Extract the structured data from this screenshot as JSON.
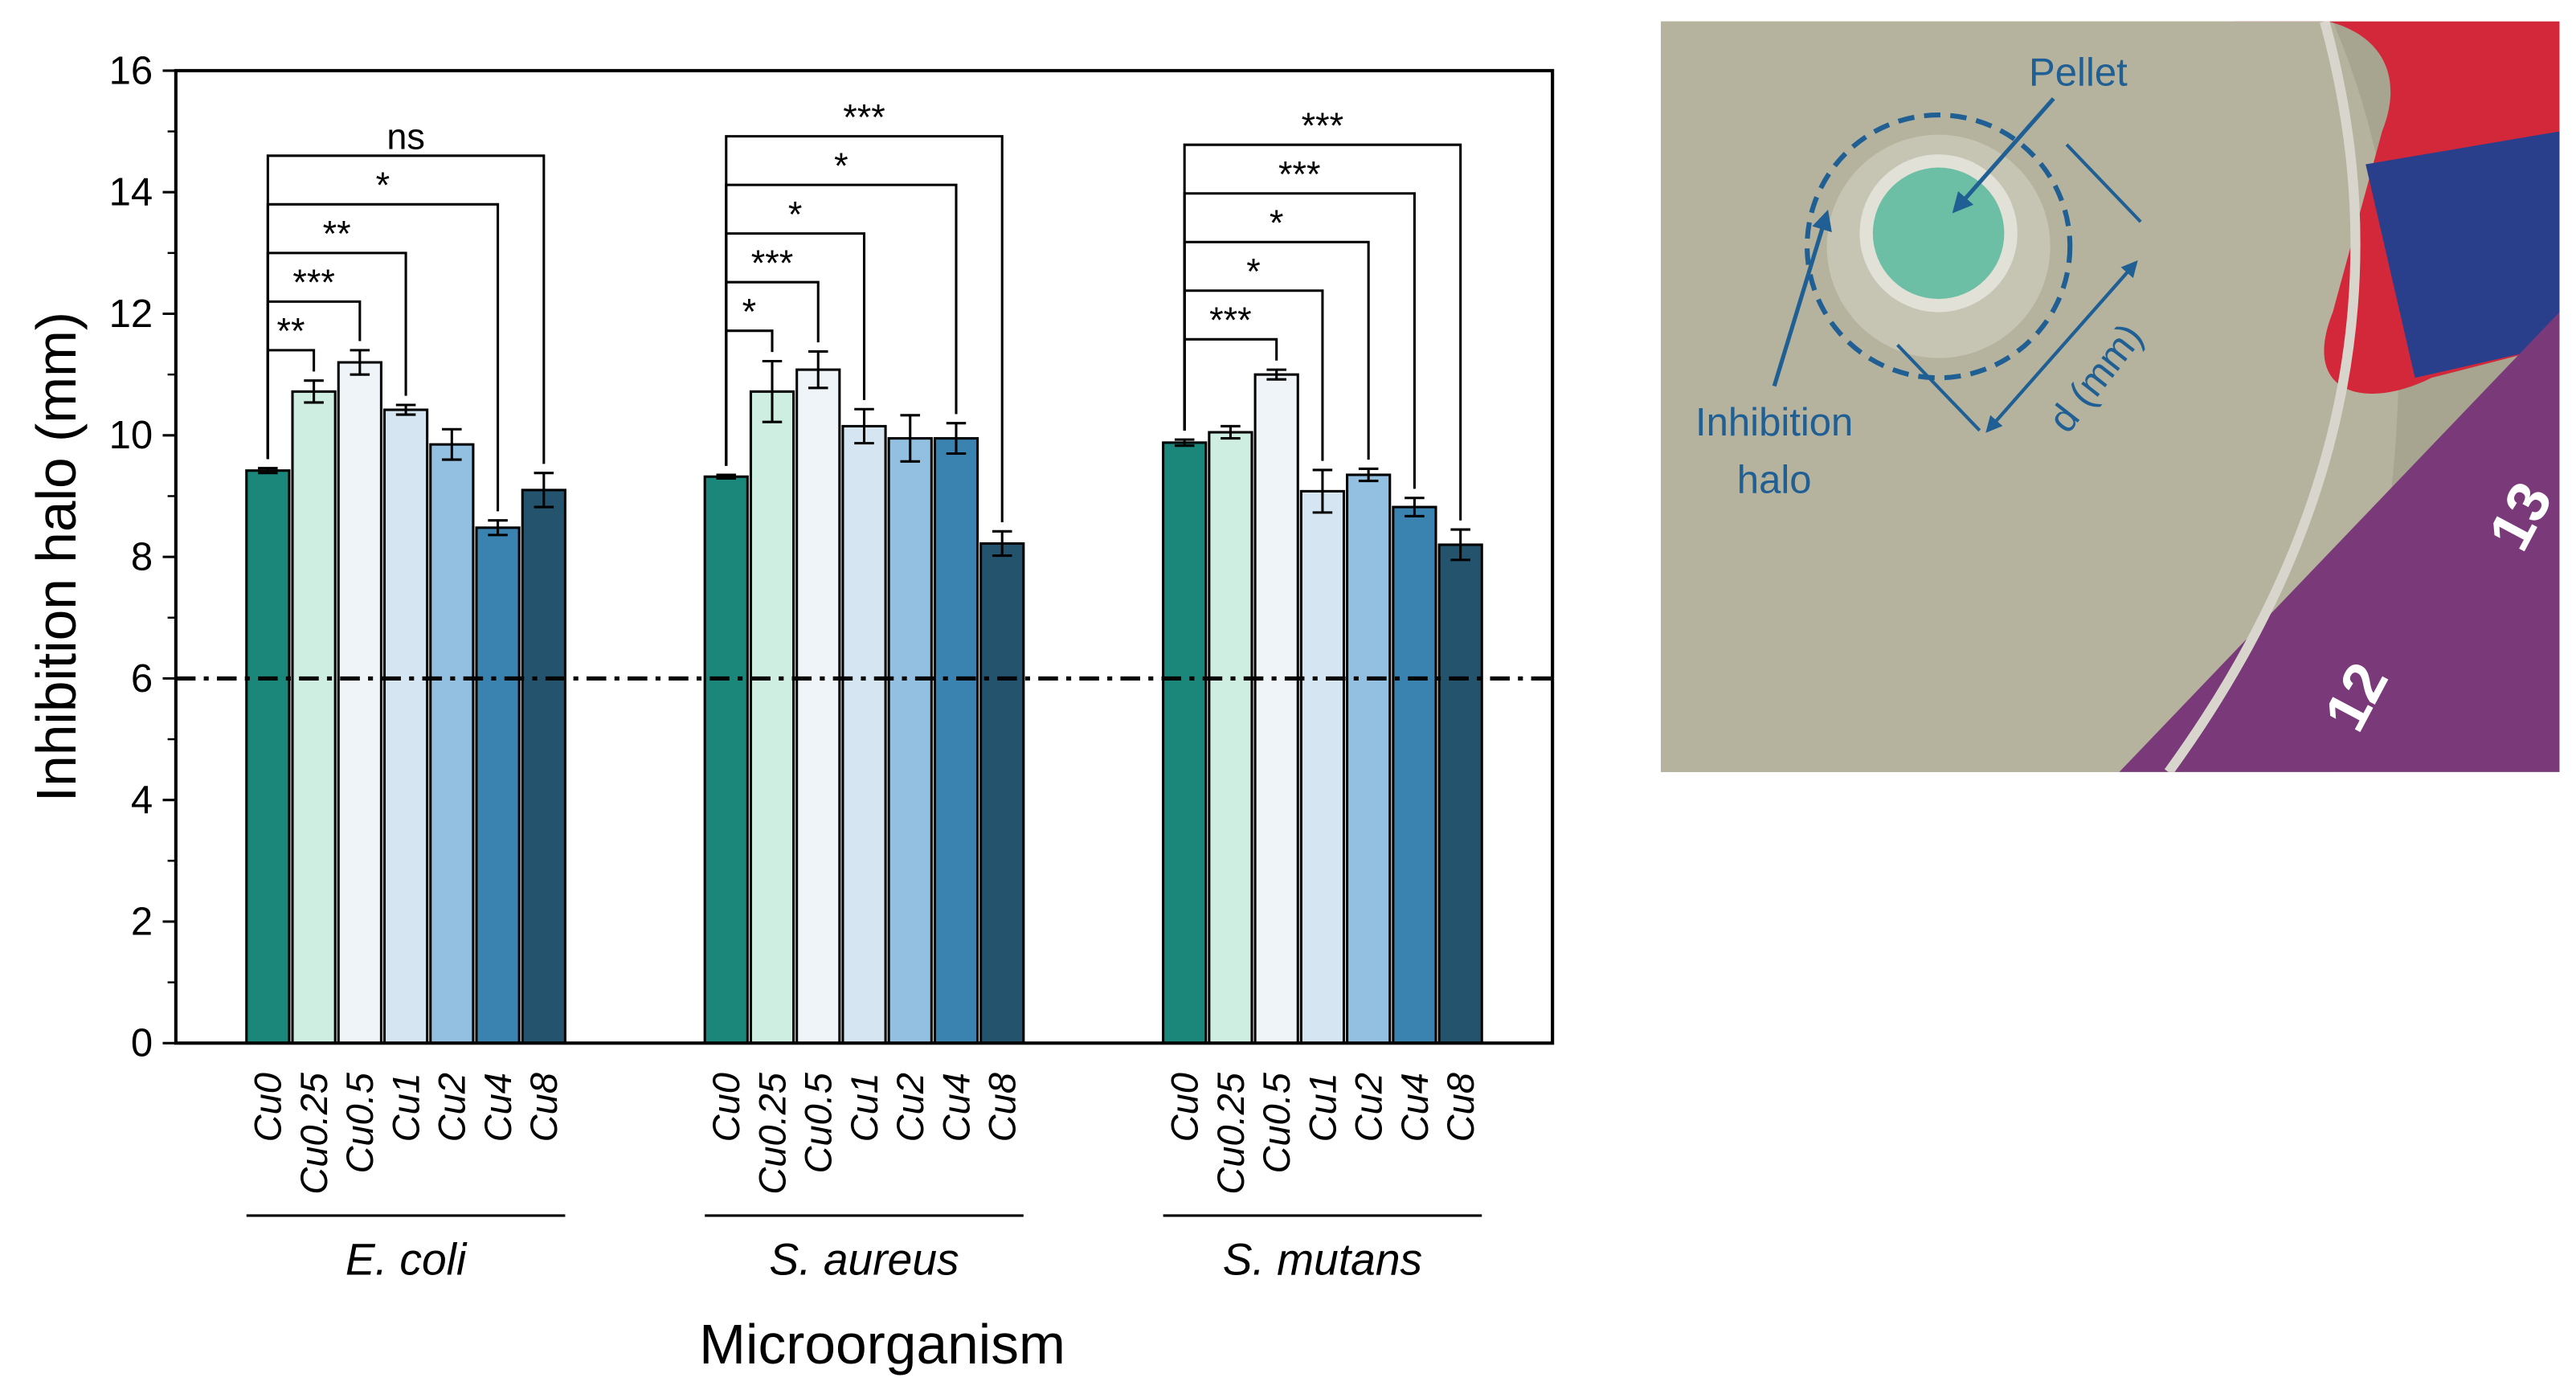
{
  "chart_data": {
    "type": "grouped-bar",
    "y_label": "Inhibition halo (mm)",
    "x_label": "Microorganism",
    "categories": [
      "Cu0",
      "Cu0.25",
      "Cu0.5",
      "Cu1",
      "Cu2",
      "Cu4",
      "Cu8"
    ],
    "colors": [
      "#1b877a",
      "#cdeee0",
      "#eef4f8",
      "#d5e6f2",
      "#93c0e0",
      "#3a82b0",
      "#24536e"
    ],
    "ylim": [
      0,
      16
    ],
    "yticks": [
      0,
      2,
      4,
      6,
      8,
      10,
      12,
      14,
      16
    ],
    "minor_yticks": [
      1,
      3,
      5,
      7,
      9,
      11,
      13,
      15
    ],
    "reference_line": 6,
    "groups": [
      {
        "name": "E. coli",
        "values": [
          9.42,
          10.72,
          11.2,
          10.42,
          9.85,
          8.48,
          9.1
        ],
        "errors": [
          0.04,
          0.18,
          0.2,
          0.08,
          0.25,
          0.12,
          0.28
        ],
        "annotations": [
          {
            "target": 1,
            "label": "**"
          },
          {
            "target": 2,
            "label": "***"
          },
          {
            "target": 3,
            "label": "**"
          },
          {
            "target": 5,
            "label": "*"
          },
          {
            "target": 6,
            "label": "ns"
          }
        ]
      },
      {
        "name": "S. aureus",
        "values": [
          9.32,
          10.72,
          11.08,
          10.15,
          9.95,
          9.95,
          8.22
        ],
        "errors": [
          0.03,
          0.5,
          0.3,
          0.28,
          0.38,
          0.25,
          0.2
        ],
        "annotations": [
          {
            "target": 1,
            "label": "*"
          },
          {
            "target": 2,
            "label": "***"
          },
          {
            "target": 3,
            "label": "*"
          },
          {
            "target": 5,
            "label": "*"
          },
          {
            "target": 6,
            "label": "***"
          }
        ]
      },
      {
        "name": "S. mutans",
        "values": [
          9.88,
          10.05,
          11.0,
          9.08,
          9.35,
          8.82,
          8.2
        ],
        "errors": [
          0.05,
          0.1,
          0.08,
          0.35,
          0.1,
          0.15,
          0.25
        ],
        "annotations": [
          {
            "target": 2,
            "label": "***"
          },
          {
            "target": 3,
            "label": "*"
          },
          {
            "target": 4,
            "label": "*"
          },
          {
            "target": 5,
            "label": "***"
          },
          {
            "target": 6,
            "label": "***"
          }
        ]
      }
    ]
  },
  "photo": {
    "pellet_label": "Pellet",
    "halo_label": [
      "Inhibition",
      "halo"
    ],
    "diameter_label": "d (mm)",
    "ruler_labels": [
      "12",
      "13"
    ]
  }
}
